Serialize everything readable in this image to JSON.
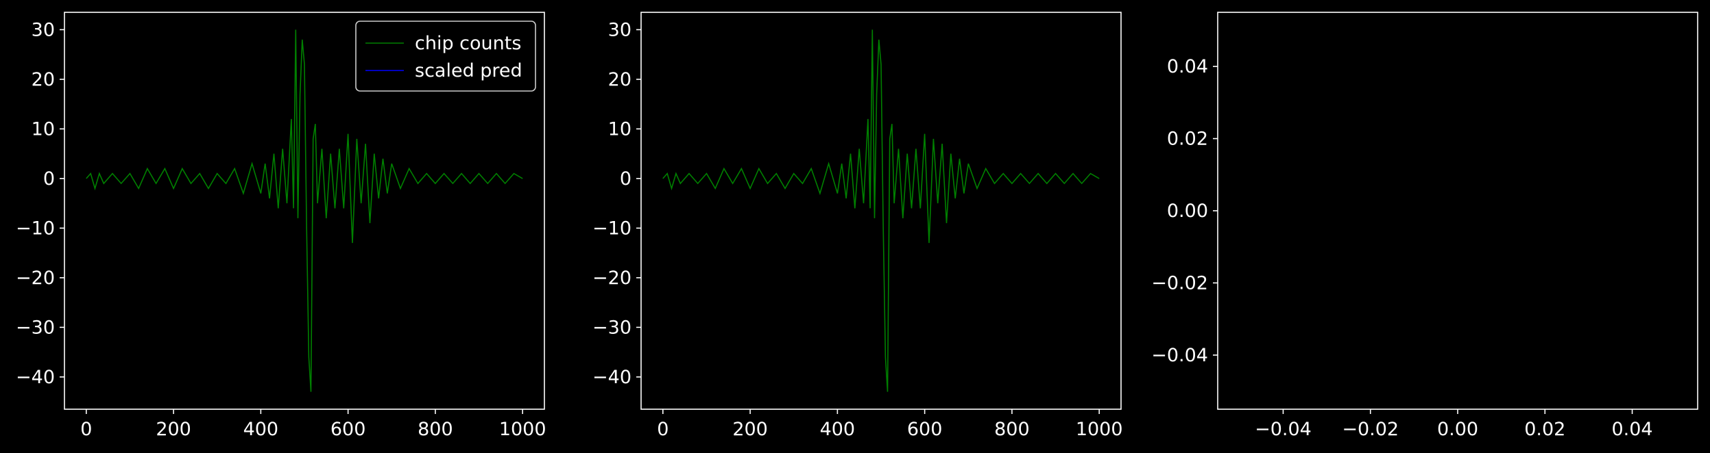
{
  "colors": {
    "background": "#000000",
    "foreground": "#ffffff",
    "chip": "#008000",
    "pred": "#0000ff"
  },
  "chart_data": [
    {
      "type": "line",
      "title": "",
      "xlabel": "",
      "ylabel": "",
      "xlim": [
        -50,
        1050
      ],
      "ylim": [
        -46.5,
        33.5
      ],
      "xticks": [
        0,
        200,
        400,
        600,
        800,
        1000
      ],
      "xtick_labels": [
        "0",
        "200",
        "400",
        "600",
        "800",
        "1000"
      ],
      "yticks": [
        30,
        20,
        10,
        0,
        -10,
        -20,
        -30,
        -40
      ],
      "ytick_labels": [
        "30",
        "20",
        "10",
        "0",
        "−10",
        "−20",
        "−30",
        "−40"
      ],
      "legend_position": "top-right",
      "legend": [
        "chip counts",
        "scaled pred"
      ],
      "series": [
        {
          "name": "chip counts",
          "color": "#008000",
          "x": [
            0,
            10,
            20,
            30,
            40,
            60,
            80,
            100,
            120,
            140,
            160,
            180,
            200,
            220,
            240,
            260,
            280,
            300,
            320,
            340,
            360,
            380,
            400,
            410,
            420,
            430,
            440,
            450,
            460,
            470,
            475,
            480,
            485,
            490,
            495,
            500,
            505,
            510,
            515,
            520,
            525,
            530,
            540,
            550,
            560,
            570,
            580,
            590,
            600,
            610,
            620,
            630,
            640,
            650,
            660,
            670,
            680,
            690,
            700,
            720,
            740,
            760,
            780,
            800,
            820,
            840,
            860,
            880,
            900,
            920,
            940,
            960,
            980,
            1000
          ],
          "values": [
            0,
            1,
            -2,
            1,
            -1,
            1,
            -1,
            1,
            -2,
            2,
            -1,
            2,
            -2,
            2,
            -1,
            1,
            -2,
            1,
            -1,
            2,
            -3,
            3,
            -3,
            3,
            -4,
            5,
            -6,
            6,
            -5,
            12,
            -6,
            30,
            -8,
            17,
            28,
            23,
            -10,
            -36,
            -43,
            8,
            11,
            -5,
            6,
            -8,
            5,
            -6,
            6,
            -6,
            9,
            -13,
            8,
            -5,
            7,
            -9,
            5,
            -4,
            4,
            -3,
            3,
            -2,
            2,
            -1,
            1,
            -1,
            1,
            -1,
            1,
            -1,
            1,
            -1,
            1,
            -1,
            1,
            0
          ]
        },
        {
          "name": "scaled pred",
          "color": "#0000ff",
          "x": [],
          "values": []
        }
      ]
    },
    {
      "type": "line",
      "title": "",
      "xlabel": "",
      "ylabel": "",
      "xlim": [
        -50,
        1050
      ],
      "ylim": [
        -46.5,
        33.5
      ],
      "xticks": [
        0,
        200,
        400,
        600,
        800,
        1000
      ],
      "xtick_labels": [
        "0",
        "200",
        "400",
        "600",
        "800",
        "1000"
      ],
      "yticks": [
        30,
        20,
        10,
        0,
        -10,
        -20,
        -30,
        -40
      ],
      "ytick_labels": [
        "30",
        "20",
        "10",
        "0",
        "−10",
        "−20",
        "−30",
        "−40"
      ],
      "series": [
        {
          "name": "chip counts",
          "color": "#008000",
          "x": [
            0,
            10,
            20,
            30,
            40,
            60,
            80,
            100,
            120,
            140,
            160,
            180,
            200,
            220,
            240,
            260,
            280,
            300,
            320,
            340,
            360,
            380,
            400,
            410,
            420,
            430,
            440,
            450,
            460,
            470,
            475,
            480,
            485,
            490,
            495,
            500,
            505,
            510,
            515,
            520,
            525,
            530,
            540,
            550,
            560,
            570,
            580,
            590,
            600,
            610,
            620,
            630,
            640,
            650,
            660,
            670,
            680,
            690,
            700,
            720,
            740,
            760,
            780,
            800,
            820,
            840,
            860,
            880,
            900,
            920,
            940,
            960,
            980,
            1000
          ],
          "values": [
            0,
            1,
            -2,
            1,
            -1,
            1,
            -1,
            1,
            -2,
            2,
            -1,
            2,
            -2,
            2,
            -1,
            1,
            -2,
            1,
            -1,
            2,
            -3,
            3,
            -3,
            3,
            -4,
            5,
            -6,
            6,
            -5,
            12,
            -6,
            30,
            -8,
            17,
            28,
            23,
            -10,
            -36,
            -43,
            8,
            11,
            -5,
            6,
            -8,
            5,
            -6,
            6,
            -6,
            9,
            -13,
            8,
            -5,
            7,
            -9,
            5,
            -4,
            4,
            -3,
            3,
            -2,
            2,
            -1,
            1,
            -1,
            1,
            -1,
            1,
            -1,
            1,
            -1,
            1,
            -1,
            1,
            0
          ]
        }
      ]
    },
    {
      "type": "line",
      "title": "",
      "xlabel": "",
      "ylabel": "",
      "xlim": [
        -0.055,
        0.055
      ],
      "ylim": [
        -0.055,
        0.055
      ],
      "xticks": [
        -0.04,
        -0.02,
        0.0,
        0.02,
        0.04
      ],
      "xtick_labels": [
        "−0.04",
        "−0.02",
        "0.00",
        "0.02",
        "0.04"
      ],
      "yticks": [
        0.04,
        0.02,
        0.0,
        -0.02,
        -0.04
      ],
      "ytick_labels": [
        "0.04",
        "0.02",
        "0.00",
        "−0.02",
        "−0.04"
      ],
      "series": []
    }
  ]
}
